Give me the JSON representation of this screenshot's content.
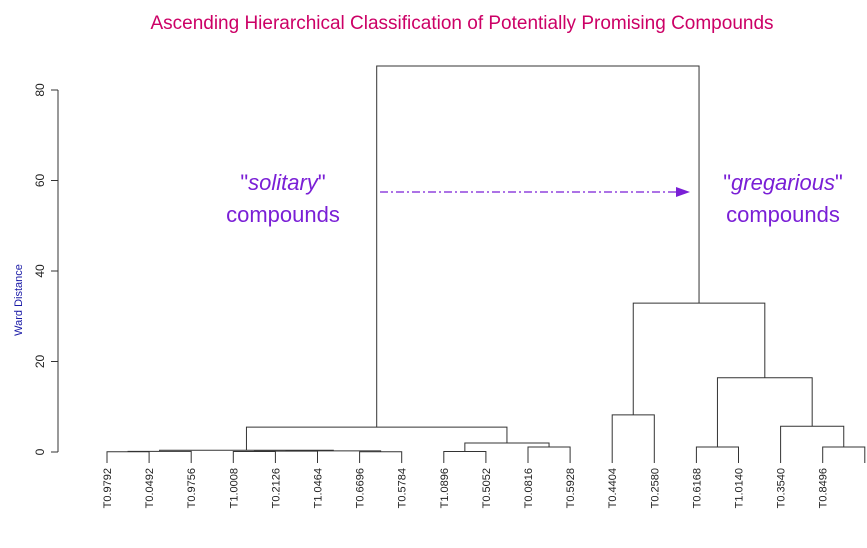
{
  "chart_data": {
    "type": "dendrogram",
    "title": "Ascending Hierarchical Classification of Potentially Promising Compounds",
    "y_label": "Ward Distance",
    "ylim": [
      0,
      80
    ],
    "yticks": [
      0,
      20,
      40,
      60,
      80
    ],
    "title_color": "#cc0066",
    "label_color": "#1a1aa6",
    "annotation_color": "#7a1fd6",
    "line_color": "#333333",
    "leaves": [
      "T0.9792",
      "T0.0492",
      "T0.9756",
      "T1.0008",
      "T0.2126",
      "T1.0464",
      "T0.6696",
      "T0.5784",
      "T1.0896",
      "T0.5052",
      "T0.0816",
      "T0.5928",
      "T0.4404",
      "T0.2580",
      "T0.6168",
      "T1.0140",
      "T0.3540",
      "T0.8496",
      null
    ],
    "merges": [
      {
        "left": -1,
        "right": -2,
        "height": 0.05
      },
      {
        "left": 1,
        "right": -3,
        "height": 0.15
      },
      {
        "left": -4,
        "right": -5,
        "height": 0.1
      },
      {
        "left": 3,
        "right": -6,
        "height": 0.2
      },
      {
        "left": -7,
        "right": -8,
        "height": 0.05
      },
      {
        "left": 4,
        "right": 5,
        "height": 0.25
      },
      {
        "left": 2,
        "right": 6,
        "height": 0.4
      },
      {
        "left": -9,
        "right": -10,
        "height": 0.1
      },
      {
        "left": -11,
        "right": -12,
        "height": 1.1
      },
      {
        "left": 8,
        "right": 9,
        "height": 2.0
      },
      {
        "left": 7,
        "right": 10,
        "height": 5.5
      },
      {
        "left": -13,
        "right": -14,
        "height": 8.2
      },
      {
        "left": -15,
        "right": -16,
        "height": 1.1
      },
      {
        "left": -18,
        "right": -19,
        "height": 1.1
      },
      {
        "left": -17,
        "right": 14,
        "height": 5.7
      },
      {
        "left": 13,
        "right": 15,
        "height": 16.4
      },
      {
        "left": 12,
        "right": 16,
        "height": 32.9
      },
      {
        "left": 11,
        "right": 17,
        "height": 85.3
      }
    ],
    "annotations": [
      {
        "emphasis": "solitary",
        "quote": "\"",
        "text": "compounds"
      },
      {
        "emphasis": "gregarious",
        "quote": "\"",
        "text": "compounds"
      }
    ]
  }
}
